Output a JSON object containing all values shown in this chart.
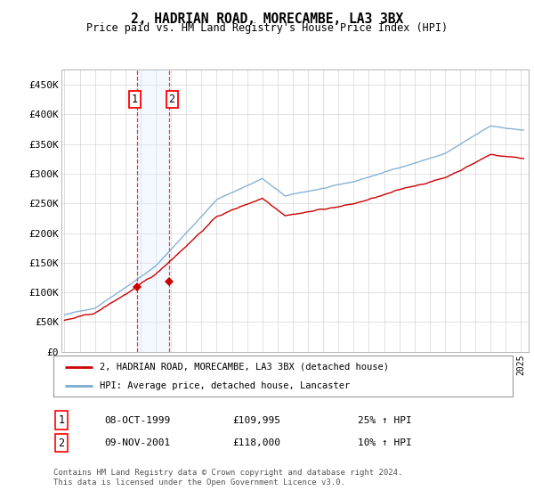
{
  "title": "2, HADRIAN ROAD, MORECAMBE, LA3 3BX",
  "subtitle": "Price paid vs. HM Land Registry's House Price Index (HPI)",
  "legend_line1": "2, HADRIAN ROAD, MORECAMBE, LA3 3BX (detached house)",
  "legend_line2": "HPI: Average price, detached house, Lancaster",
  "sale1_date": "08-OCT-1999",
  "sale1_price": "£109,995",
  "sale1_hpi": "25% ↑ HPI",
  "sale1_year": 1999.77,
  "sale1_value": 109995,
  "sale2_date": "09-NOV-2001",
  "sale2_price": "£118,000",
  "sale2_hpi": "10% ↑ HPI",
  "sale2_year": 2001.86,
  "sale2_value": 118000,
  "footer": "Contains HM Land Registry data © Crown copyright and database right 2024.\nThis data is licensed under the Open Government Licence v3.0.",
  "hpi_color": "#7aabcf",
  "price_color": "#cc0000",
  "marker_color": "#cc0000",
  "shade_color": "#ddeeff",
  "vline_color": "#cc0000",
  "grid_color": "#cccccc",
  "ylim": [
    0,
    475000
  ],
  "yticks": [
    0,
    50000,
    100000,
    150000,
    200000,
    250000,
    300000,
    350000,
    400000,
    450000
  ],
  "ytick_labels": [
    "£0",
    "£50K",
    "£100K",
    "£150K",
    "£200K",
    "£250K",
    "£300K",
    "£350K",
    "£400K",
    "£450K"
  ],
  "xmin": 1994.8,
  "xmax": 2025.5
}
